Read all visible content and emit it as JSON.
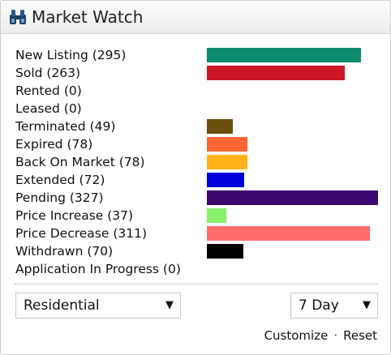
{
  "widget": {
    "title": "Market Watch",
    "icon": "binoculars-icon"
  },
  "stats": [
    {
      "label": "New Listing (295)",
      "value": 295,
      "color": "#0e8a6f"
    },
    {
      "label": "Sold (263)",
      "value": 263,
      "color": "#cc1625"
    },
    {
      "label": "Rented (0)",
      "value": 0,
      "color": ""
    },
    {
      "label": "Leased (0)",
      "value": 0,
      "color": ""
    },
    {
      "label": "Terminated (49)",
      "value": 49,
      "color": "#6b4f0e"
    },
    {
      "label": "Expired (78)",
      "value": 78,
      "color": "#ff6633"
    },
    {
      "label": "Back On Market (78)",
      "value": 78,
      "color": "#ffb21a"
    },
    {
      "label": "Extended (72)",
      "value": 72,
      "color": "#0000dd"
    },
    {
      "label": "Pending (327)",
      "value": 327,
      "color": "#3b0870"
    },
    {
      "label": "Price Increase (37)",
      "value": 37,
      "color": "#88f06a"
    },
    {
      "label": "Price Decrease (311)",
      "value": 311,
      "color": "#ff6a6a"
    },
    {
      "label": "Withdrawn (70)",
      "value": 70,
      "color": "#000000"
    },
    {
      "label": "Application In Progress (0)",
      "value": 0,
      "color": ""
    }
  ],
  "stats_max": 327,
  "filters": {
    "property_type": "Residential",
    "period": "7 Day"
  },
  "footer": {
    "customize_label": "Customize",
    "separator": "·",
    "reset_label": "Reset"
  }
}
